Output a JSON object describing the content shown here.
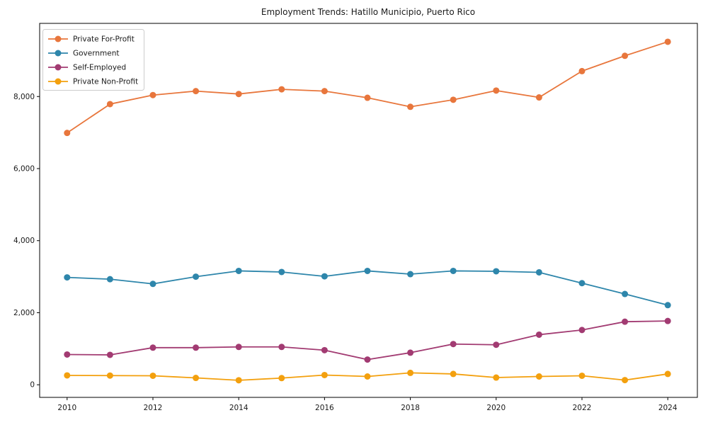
{
  "title": "Employment Trends: Hatillo Municipio, Puerto Rico",
  "chart_data": {
    "type": "line",
    "title": "Employment Trends: Hatillo Municipio, Puerto Rico",
    "xlabel": "",
    "ylabel": "",
    "x": [
      2010,
      2011,
      2012,
      2013,
      2014,
      2015,
      2016,
      2017,
      2018,
      2019,
      2020,
      2021,
      2022,
      2023,
      2024
    ],
    "series": [
      {
        "name": "Private For-Profit",
        "color": "#e8763c",
        "values": [
          6990,
          7790,
          8040,
          8150,
          8070,
          8200,
          8150,
          7965,
          7715,
          7910,
          8165,
          7975,
          8705,
          9130,
          9520
        ]
      },
      {
        "name": "Government",
        "color": "#2e86ab",
        "values": [
          2980,
          2930,
          2800,
          3000,
          3160,
          3130,
          3010,
          3160,
          3070,
          3160,
          3150,
          3120,
          2820,
          2520,
          2210
        ]
      },
      {
        "name": "Self-Employed",
        "color": "#a23b72",
        "values": [
          840,
          830,
          1030,
          1030,
          1050,
          1050,
          960,
          700,
          890,
          1130,
          1110,
          1390,
          1520,
          1750,
          1770
        ]
      },
      {
        "name": "Private Non-Profit",
        "color": "#f3a00e",
        "values": [
          260,
          255,
          250,
          190,
          125,
          185,
          270,
          230,
          330,
          300,
          200,
          230,
          250,
          130,
          300
        ]
      }
    ],
    "xticks": [
      2010,
      2012,
      2014,
      2016,
      2018,
      2020,
      2022,
      2024
    ],
    "xtick_labels": [
      "2010",
      "2012",
      "2014",
      "2016",
      "2018",
      "2020",
      "2022",
      "2024"
    ],
    "yticks": [
      0,
      2000,
      4000,
      6000,
      8000
    ],
    "ytick_labels": [
      "0",
      "2,000",
      "4,000",
      "6,000",
      "8,000"
    ],
    "xlim": [
      2009.36,
      2024.69
    ],
    "ylim": [
      -350,
      10030
    ],
    "grid": false,
    "legend_position": "upper-left"
  }
}
